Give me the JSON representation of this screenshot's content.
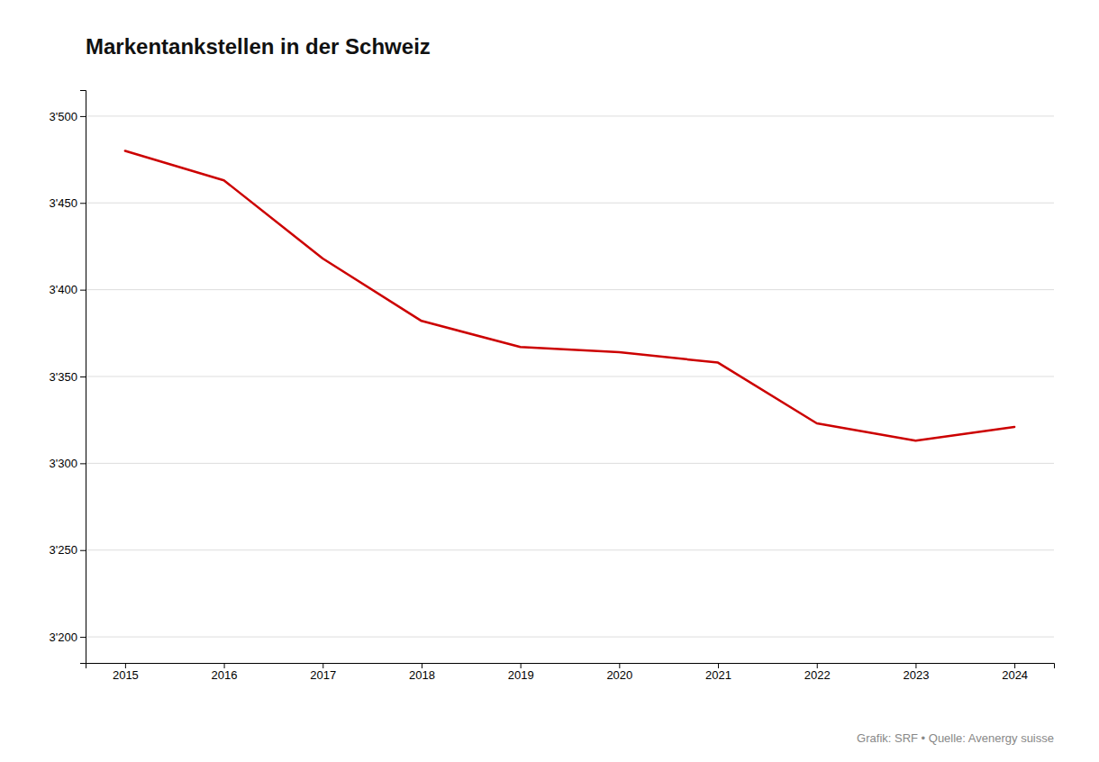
{
  "chart_data": {
    "type": "line",
    "title": "Markentankstellen in der Schweiz",
    "footnote": "Grafik: SRF • Quelle: Avenergy suisse",
    "x": [
      2015,
      2016,
      2017,
      2018,
      2019,
      2020,
      2021,
      2022,
      2023,
      2024
    ],
    "y": [
      3480,
      3463,
      3418,
      3382,
      3367,
      3364,
      3358,
      3323,
      3313,
      3321
    ],
    "color": "#cc0000",
    "xlim": [
      2014.6,
      2024.4
    ],
    "xticks": [
      2015,
      2016,
      2017,
      2018,
      2019,
      2020,
      2021,
      2022,
      2023,
      2024
    ],
    "ylim": [
      3185,
      3515
    ],
    "yticks": [
      {
        "value": 3200,
        "label": "3'200"
      },
      {
        "value": 3250,
        "label": "3'250"
      },
      {
        "value": 3300,
        "label": "3'300"
      },
      {
        "value": 3350,
        "label": "3'350"
      },
      {
        "value": 3400,
        "label": "3'400"
      },
      {
        "value": 3450,
        "label": "3'450"
      },
      {
        "value": 3500,
        "label": "3'500"
      }
    ],
    "grid": true
  }
}
